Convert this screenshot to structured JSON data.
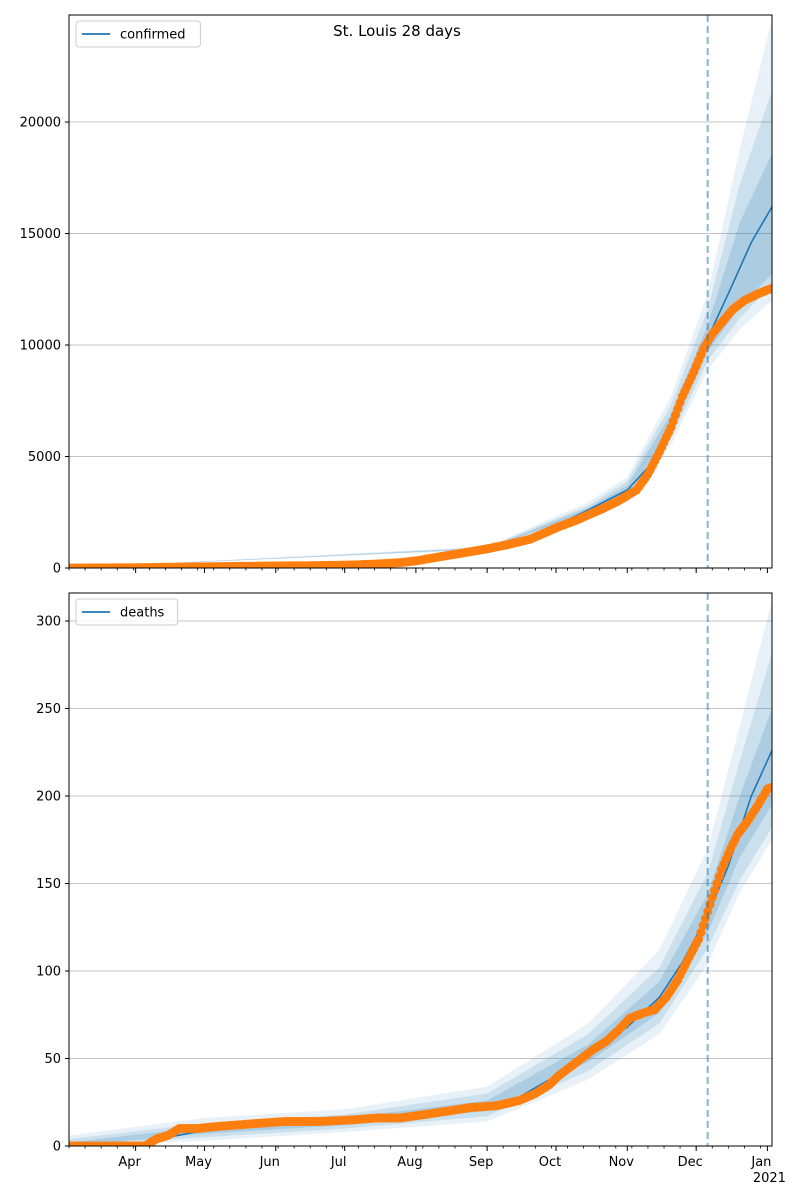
{
  "figure": {
    "title": "St. Louis 28 days"
  },
  "colors": {
    "model_line": "#1f77b4",
    "band": "#1f77b4",
    "observed": "#ff7f0e",
    "grid": "#b0b0b0",
    "forecast_marker": "#1f77b4"
  },
  "chart_data": [
    {
      "type": "line",
      "legend": {
        "label": "confirmed",
        "placement": "top-left"
      },
      "ylim": [
        0,
        24800
      ],
      "yticks": [
        0,
        5000,
        10000,
        15000,
        20000
      ],
      "ytick_labels": [
        "0",
        "5000",
        "10000",
        "15000",
        "20000"
      ],
      "xlim": [
        "2020-03-03",
        "2021-01-03"
      ],
      "xticks": [],
      "xtick_labels": [],
      "grid": "horizontal",
      "forecast_start": "2020-12-06",
      "series": [
        {
          "name": "confirmed",
          "kind": "model",
          "points": [
            [
              "2020-03-03",
              0
            ],
            [
              "2020-04-01",
              25
            ],
            [
              "2020-05-01",
              60
            ],
            [
              "2020-06-01",
              100
            ],
            [
              "2020-07-01",
              150
            ],
            [
              "2020-07-15",
              200
            ],
            [
              "2020-08-01",
              380
            ],
            [
              "2020-08-15",
              650
            ],
            [
              "2020-09-01",
              880
            ],
            [
              "2020-09-15",
              1200
            ],
            [
              "2020-10-01",
              1900
            ],
            [
              "2020-10-15",
              2600
            ],
            [
              "2020-11-01",
              3500
            ],
            [
              "2020-11-10",
              4500
            ],
            [
              "2020-11-20",
              6500
            ],
            [
              "2020-11-28",
              8500
            ],
            [
              "2020-12-06",
              10300
            ],
            [
              "2020-12-15",
              12300
            ],
            [
              "2020-12-25",
              14600
            ],
            [
              "2021-01-03",
              16200
            ]
          ]
        },
        {
          "name": "confirmed band 1",
          "kind": "band",
          "lower": [
            [
              "2020-03-03",
              0
            ],
            [
              "2020-09-01",
              860
            ],
            [
              "2020-10-15",
              2500
            ],
            [
              "2020-11-01",
              3300
            ],
            [
              "2020-11-20",
              6100
            ],
            [
              "2020-12-06",
              9700
            ],
            [
              "2020-12-20",
              11700
            ],
            [
              "2021-01-03",
              13200
            ]
          ],
          "upper": [
            [
              "2020-03-03",
              0
            ],
            [
              "2020-09-01",
              900
            ],
            [
              "2020-10-15",
              2700
            ],
            [
              "2020-11-01",
              3700
            ],
            [
              "2020-11-20",
              6900
            ],
            [
              "2020-12-06",
              10900
            ],
            [
              "2020-12-20",
              15500
            ],
            [
              "2021-01-03",
              18600
            ]
          ]
        },
        {
          "name": "confirmed band 2",
          "kind": "band",
          "lower": [
            [
              "2020-03-03",
              0
            ],
            [
              "2020-09-01",
              840
            ],
            [
              "2020-10-15",
              2400
            ],
            [
              "2020-11-01",
              3100
            ],
            [
              "2020-11-20",
              5800
            ],
            [
              "2020-12-06",
              9300
            ],
            [
              "2020-12-20",
              11200
            ],
            [
              "2021-01-03",
              12700
            ]
          ],
          "upper": [
            [
              "2020-03-03",
              0
            ],
            [
              "2020-09-01",
              930
            ],
            [
              "2020-10-15",
              2800
            ],
            [
              "2020-11-01",
              3900
            ],
            [
              "2020-11-20",
              7300
            ],
            [
              "2020-12-06",
              11600
            ],
            [
              "2020-12-20",
              17200
            ],
            [
              "2021-01-03",
              21400
            ]
          ]
        },
        {
          "name": "confirmed band 3",
          "kind": "band",
          "lower": [
            [
              "2020-03-03",
              0
            ],
            [
              "2020-09-01",
              820
            ],
            [
              "2020-10-15",
              2300
            ],
            [
              "2020-11-01",
              2950
            ],
            [
              "2020-11-20",
              5500
            ],
            [
              "2020-12-06",
              8900
            ],
            [
              "2020-12-20",
              10700
            ],
            [
              "2021-01-03",
              12000
            ]
          ],
          "upper": [
            [
              "2020-03-03",
              0
            ],
            [
              "2020-09-01",
              960
            ],
            [
              "2020-10-15",
              2950
            ],
            [
              "2020-11-01",
              4100
            ],
            [
              "2020-11-20",
              7700
            ],
            [
              "2020-12-06",
              12300
            ],
            [
              "2020-12-20",
              18800
            ],
            [
              "2021-01-03",
              24600
            ]
          ]
        },
        {
          "name": "confirmed observed",
          "kind": "observed",
          "points": [
            [
              "2020-03-03",
              0
            ],
            [
              "2020-03-20",
              5
            ],
            [
              "2020-04-05",
              20
            ],
            [
              "2020-04-20",
              40
            ],
            [
              "2020-05-05",
              60
            ],
            [
              "2020-05-20",
              80
            ],
            [
              "2020-06-05",
              95
            ],
            [
              "2020-06-20",
              110
            ],
            [
              "2020-07-05",
              140
            ],
            [
              "2020-07-15",
              180
            ],
            [
              "2020-07-25",
              240
            ],
            [
              "2020-08-01",
              320
            ],
            [
              "2020-08-10",
              480
            ],
            [
              "2020-08-20",
              650
            ],
            [
              "2020-09-01",
              860
            ],
            [
              "2020-09-10",
              1050
            ],
            [
              "2020-09-20",
              1300
            ],
            [
              "2020-10-01",
              1800
            ],
            [
              "2020-10-10",
              2150
            ],
            [
              "2020-10-20",
              2600
            ],
            [
              "2020-10-28",
              3000
            ],
            [
              "2020-11-05",
              3500
            ],
            [
              "2020-11-10",
              4200
            ],
            [
              "2020-11-15",
              5200
            ],
            [
              "2020-11-20",
              6300
            ],
            [
              "2020-11-25",
              7700
            ],
            [
              "2020-11-30",
              8800
            ],
            [
              "2020-12-04",
              9800
            ],
            [
              "2020-12-08",
              10500
            ],
            [
              "2020-12-12",
              11000
            ],
            [
              "2020-12-17",
              11600
            ],
            [
              "2020-12-22",
              12000
            ],
            [
              "2020-12-28",
              12300
            ],
            [
              "2021-01-03",
              12550
            ]
          ]
        }
      ]
    },
    {
      "type": "line",
      "legend": {
        "label": "deaths",
        "placement": "top-left"
      },
      "ylim": [
        0,
        316
      ],
      "yticks": [
        0,
        50,
        100,
        150,
        200,
        250,
        300
      ],
      "ytick_labels": [
        "0",
        "50",
        "100",
        "150",
        "200",
        "250",
        "300"
      ],
      "xlim": [
        "2020-03-03",
        "2021-01-03"
      ],
      "xticks": [
        "2020-04-01",
        "2020-05-01",
        "2020-06-01",
        "2020-07-01",
        "2020-08-01",
        "2020-09-01",
        "2020-10-01",
        "2020-11-01",
        "2020-12-01",
        "2021-01-01"
      ],
      "xtick_labels": [
        "Apr",
        "May",
        "Jun",
        "Jul",
        "Aug",
        "Sep",
        "Oct",
        "Nov",
        "Dec",
        "Jan\n2021"
      ],
      "grid": "horizontal",
      "forecast_start": "2020-12-06",
      "series": [
        {
          "name": "deaths",
          "kind": "model",
          "points": [
            [
              "2020-03-03",
              0
            ],
            [
              "2020-04-01",
              1
            ],
            [
              "2020-04-15",
              5
            ],
            [
              "2020-05-01",
              9
            ],
            [
              "2020-06-01",
              12
            ],
            [
              "2020-07-01",
              14
            ],
            [
              "2020-08-01",
              17
            ],
            [
              "2020-08-15",
              19
            ],
            [
              "2020-09-01",
              23
            ],
            [
              "2020-09-15",
              28
            ],
            [
              "2020-10-01",
              40
            ],
            [
              "2020-10-15",
              53
            ],
            [
              "2020-11-01",
              68
            ],
            [
              "2020-11-15",
              85
            ],
            [
              "2020-11-25",
              105
            ],
            [
              "2020-12-06",
              132
            ],
            [
              "2020-12-15",
              160
            ],
            [
              "2020-12-25",
              200
            ],
            [
              "2021-01-03",
              226
            ]
          ]
        },
        {
          "name": "deaths band 1",
          "kind": "band",
          "lower": [
            [
              "2020-03-03",
              0
            ],
            [
              "2020-05-01",
              7
            ],
            [
              "2020-07-01",
              12
            ],
            [
              "2020-09-01",
              20
            ],
            [
              "2020-10-15",
              48
            ],
            [
              "2020-11-15",
              76
            ],
            [
              "2020-12-06",
              122
            ],
            [
              "2020-12-20",
              165
            ],
            [
              "2021-01-03",
              195
            ]
          ],
          "upper": [
            [
              "2020-03-03",
              2
            ],
            [
              "2020-05-01",
              11
            ],
            [
              "2020-07-01",
              16
            ],
            [
              "2020-09-01",
              26
            ],
            [
              "2020-10-15",
              58
            ],
            [
              "2020-11-15",
              94
            ],
            [
              "2020-12-06",
              144
            ],
            [
              "2020-12-20",
              200
            ],
            [
              "2021-01-03",
              250
            ]
          ]
        },
        {
          "name": "deaths band 2",
          "kind": "band",
          "lower": [
            [
              "2020-03-03",
              0
            ],
            [
              "2020-05-01",
              5
            ],
            [
              "2020-07-01",
              10
            ],
            [
              "2020-09-01",
              17
            ],
            [
              "2020-10-15",
              43
            ],
            [
              "2020-11-15",
              70
            ],
            [
              "2020-12-06",
              113
            ],
            [
              "2020-12-20",
              152
            ],
            [
              "2021-01-03",
              182
            ]
          ],
          "upper": [
            [
              "2020-03-03",
              4
            ],
            [
              "2020-05-01",
              13
            ],
            [
              "2020-07-01",
              18
            ],
            [
              "2020-09-01",
              30
            ],
            [
              "2020-10-15",
              64
            ],
            [
              "2020-11-15",
              102
            ],
            [
              "2020-12-06",
              156
            ],
            [
              "2020-12-20",
              220
            ],
            [
              "2021-01-03",
              282
            ]
          ]
        },
        {
          "name": "deaths band 3",
          "kind": "band",
          "lower": [
            [
              "2020-03-03",
              0
            ],
            [
              "2020-05-01",
              3
            ],
            [
              "2020-07-01",
              8
            ],
            [
              "2020-09-01",
              14
            ],
            [
              "2020-10-15",
              38
            ],
            [
              "2020-11-15",
              64
            ],
            [
              "2020-12-06",
              104
            ],
            [
              "2020-12-20",
              145
            ],
            [
              "2021-01-03",
              175
            ]
          ],
          "upper": [
            [
              "2020-03-03",
              6
            ],
            [
              "2020-05-01",
              16
            ],
            [
              "2020-07-01",
              21
            ],
            [
              "2020-09-01",
              34
            ],
            [
              "2020-10-15",
              70
            ],
            [
              "2020-11-15",
              112
            ],
            [
              "2020-12-06",
              170
            ],
            [
              "2020-12-20",
              240
            ],
            [
              "2021-01-03",
              312
            ]
          ]
        },
        {
          "name": "deaths observed",
          "kind": "observed",
          "points": [
            [
              "2020-03-03",
              0
            ],
            [
              "2020-03-20",
              0
            ],
            [
              "2020-04-05",
              0
            ],
            [
              "2020-04-10",
              4
            ],
            [
              "2020-04-15",
              6
            ],
            [
              "2020-04-20",
              10
            ],
            [
              "2020-04-28",
              10
            ],
            [
              "2020-05-05",
              11
            ],
            [
              "2020-05-15",
              12
            ],
            [
              "2020-05-25",
              13
            ],
            [
              "2020-06-05",
              14
            ],
            [
              "2020-06-20",
              14
            ],
            [
              "2020-07-05",
              15
            ],
            [
              "2020-07-15",
              16
            ],
            [
              "2020-07-25",
              16
            ],
            [
              "2020-08-05",
              18
            ],
            [
              "2020-08-15",
              20
            ],
            [
              "2020-08-25",
              22
            ],
            [
              "2020-09-05",
              23
            ],
            [
              "2020-09-15",
              26
            ],
            [
              "2020-09-22",
              30
            ],
            [
              "2020-09-28",
              35
            ],
            [
              "2020-10-02",
              40
            ],
            [
              "2020-10-07",
              45
            ],
            [
              "2020-10-12",
              50
            ],
            [
              "2020-10-17",
              55
            ],
            [
              "2020-10-23",
              60
            ],
            [
              "2020-10-28",
              66
            ],
            [
              "2020-11-02",
              73
            ],
            [
              "2020-11-08",
              76
            ],
            [
              "2020-11-13",
              78
            ],
            [
              "2020-11-18",
              85
            ],
            [
              "2020-11-23",
              95
            ],
            [
              "2020-11-28",
              108
            ],
            [
              "2020-12-02",
              118
            ],
            [
              "2020-12-06",
              134
            ],
            [
              "2020-12-09",
              146
            ],
            [
              "2020-12-12",
              158
            ],
            [
              "2020-12-16",
              170
            ],
            [
              "2020-12-19",
              178
            ],
            [
              "2020-12-23",
              185
            ],
            [
              "2020-12-28",
              195
            ],
            [
              "2021-01-01",
              204
            ],
            [
              "2021-01-03",
              205
            ]
          ]
        }
      ]
    }
  ]
}
